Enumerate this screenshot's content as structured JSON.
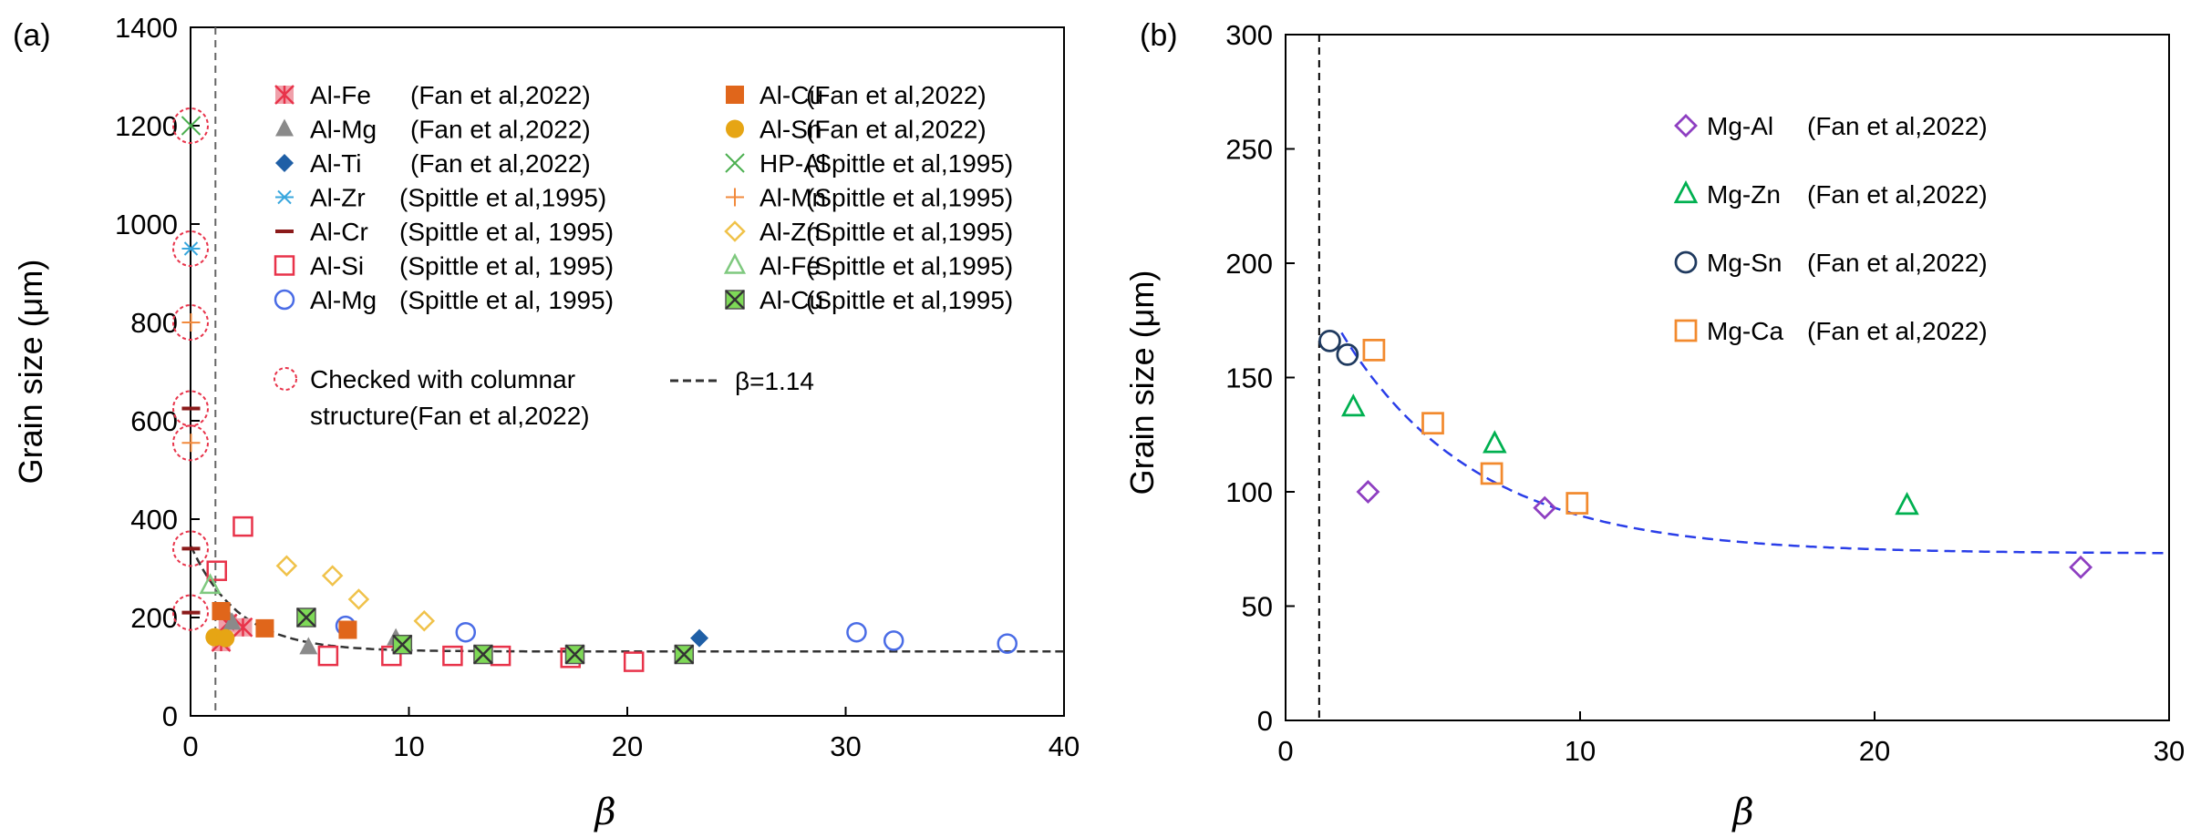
{
  "chart_data": [
    {
      "panel_label": "(a)",
      "type": "scatter",
      "xlabel": "β",
      "ylabel": "Grain size (μm)",
      "xlim": [
        0,
        40
      ],
      "ylim": [
        0,
        1400
      ],
      "xticks": [
        "0",
        "10",
        "20",
        "30",
        "40"
      ],
      "yticks": [
        "0",
        "200",
        "400",
        "600",
        "800",
        "1000",
        "1200",
        "1400"
      ],
      "series": [
        {
          "name": "Al-Fe",
          "ref": "(Fan et al,2022)",
          "marker": "square-star",
          "color": "#e8334a",
          "points": [
            [
              1.4,
              150
            ],
            [
              1.7,
              188
            ],
            [
              2.4,
              180
            ]
          ]
        },
        {
          "name": "Al-Mg",
          "ref": "(Fan et al,2022)",
          "marker": "triangle",
          "color": "#8a8a8a",
          "points": [
            [
              1.6,
              210
            ],
            [
              1.9,
              190
            ],
            [
              5.4,
              140
            ],
            [
              9.4,
              158
            ]
          ]
        },
        {
          "name": "Al-Ti",
          "ref": "(Fan et al,2022)",
          "marker": "diamond",
          "color": "#1f5fa6",
          "points": [
            [
              23.3,
              158
            ]
          ]
        },
        {
          "name": "Al-Zr",
          "ref": "(Spittle et al,1995)",
          "marker": "asterisk",
          "color": "#39a7dd",
          "points": [
            [
              0.02,
              950
            ]
          ]
        },
        {
          "name": "Al-Cr",
          "ref": "(Spittle et al, 1995)",
          "marker": "dash",
          "color": "#8b1a1a",
          "points": [
            [
              0.02,
              625
            ],
            [
              0.02,
              340
            ],
            [
              0.02,
              210
            ]
          ]
        },
        {
          "name": "Al-Si",
          "ref": "(Spittle et al, 1995)",
          "marker": "square-open",
          "color": "#e8334a",
          "points": [
            [
              1.2,
              295
            ],
            [
              2.4,
              385
            ],
            [
              6.3,
              122
            ],
            [
              9.2,
              122
            ],
            [
              12,
              122
            ],
            [
              14.2,
              122
            ],
            [
              17.4,
              118
            ],
            [
              20.3,
              110
            ]
          ]
        },
        {
          "name": "Al-Mg",
          "ref": "(Spittle et al, 1995)",
          "marker": "circle-open",
          "color": "#4a6ce6",
          "points": [
            [
              7.1,
              183
            ],
            [
              12.6,
              170
            ],
            [
              30.5,
              170
            ],
            [
              32.2,
              153
            ],
            [
              37.4,
              147
            ]
          ]
        },
        {
          "name": "Al-Cu",
          "ref": "(Fan et al,2022)",
          "marker": "square",
          "color": "#e0661b",
          "points": [
            [
              1.4,
              213
            ],
            [
              3.4,
              178
            ],
            [
              7.2,
              175
            ]
          ]
        },
        {
          "name": "Al-Sn",
          "ref": "(Fan et al,2022)",
          "marker": "circle",
          "color": "#e6a514",
          "points": [
            [
              1.1,
              160
            ],
            [
              1.6,
              158
            ]
          ]
        },
        {
          "name": "HP-Al",
          "ref": "(Spittle et al,1995)",
          "marker": "x",
          "color": "#4caf50",
          "points": [
            [
              0.02,
              1200
            ]
          ]
        },
        {
          "name": "Al-Mn",
          "ref": "(Spittle et al,1995)",
          "marker": "plus",
          "color": "#f28a3c",
          "points": [
            [
              0.02,
              800
            ],
            [
              0.02,
              555
            ]
          ]
        },
        {
          "name": "Al-Zn",
          "ref": "(Spittle et al,1995)",
          "marker": "diamond-open",
          "color": "#f0c24a",
          "points": [
            [
              4.4,
              305
            ],
            [
              6.5,
              285
            ],
            [
              7.7,
              237
            ],
            [
              10.7,
              193
            ]
          ]
        },
        {
          "name": "Al-Fe",
          "ref": "(Spittle et al,1995)",
          "marker": "triangle-open",
          "color": "#7fc97f",
          "points": [
            [
              0.9,
              265
            ]
          ]
        },
        {
          "name": "Al-Cu",
          "ref": "(Spittle et al,1995)",
          "marker": "box-x",
          "color": "#3cb043",
          "points": [
            [
              5.3,
              200
            ],
            [
              9.7,
              145
            ],
            [
              13.4,
              125
            ],
            [
              17.6,
              125
            ],
            [
              22.6,
              125
            ]
          ]
        }
      ],
      "checked_points": [
        [
          0,
          1200
        ],
        [
          0,
          950
        ],
        [
          0,
          800
        ],
        [
          0,
          625
        ],
        [
          0,
          555
        ],
        [
          0,
          340
        ],
        [
          0,
          210
        ]
      ],
      "checked_label_line1": "Checked with columnar",
      "checked_label_line2": "structure(Fan et al,2022)",
      "fit_label": "β=1.14",
      "vline_x": 1.14,
      "fit_curve": {
        "plateau": 131,
        "amplitude": 150,
        "decay": 2.2,
        "x0": 0.8
      }
    },
    {
      "panel_label": "(b)",
      "type": "scatter",
      "xlabel": "β",
      "ylabel": "Grain size (μm)",
      "xlim": [
        0,
        30
      ],
      "ylim": [
        0,
        300
      ],
      "xticks": [
        "0",
        "10",
        "20",
        "30"
      ],
      "yticks": [
        "0",
        "50",
        "100",
        "150",
        "200",
        "250",
        "300"
      ],
      "series": [
        {
          "name": "Mg-Al",
          "ref": "(Fan et al,2022)",
          "marker": "diamond-open",
          "color": "#8e3fc1",
          "points": [
            [
              2.8,
              100
            ],
            [
              8.8,
              93
            ],
            [
              27,
              67
            ]
          ]
        },
        {
          "name": "Mg-Zn",
          "ref": "(Fan et al,2022)",
          "marker": "triangle-open",
          "color": "#00b050",
          "points": [
            [
              2.3,
              137
            ],
            [
              7.1,
              121
            ],
            [
              21.1,
              94
            ]
          ]
        },
        {
          "name": "Mg-Sn",
          "ref": "(Fan et al,2022)",
          "marker": "circle-open",
          "color": "#1f3a5f",
          "points": [
            [
              1.5,
              166
            ],
            [
              2.1,
              160
            ]
          ]
        },
        {
          "name": "Mg-Ca",
          "ref": "(Fan et al,2022)",
          "marker": "square-open",
          "color": "#f28a2e",
          "points": [
            [
              3,
              162
            ],
            [
              5,
              130
            ],
            [
              7,
              108
            ],
            [
              9.9,
              95
            ]
          ]
        }
      ],
      "vline_x": 1.14,
      "fit_curve": {
        "plateau": 73,
        "amplitude": 110,
        "decay": 4.6,
        "x0": 1.3
      }
    }
  ]
}
